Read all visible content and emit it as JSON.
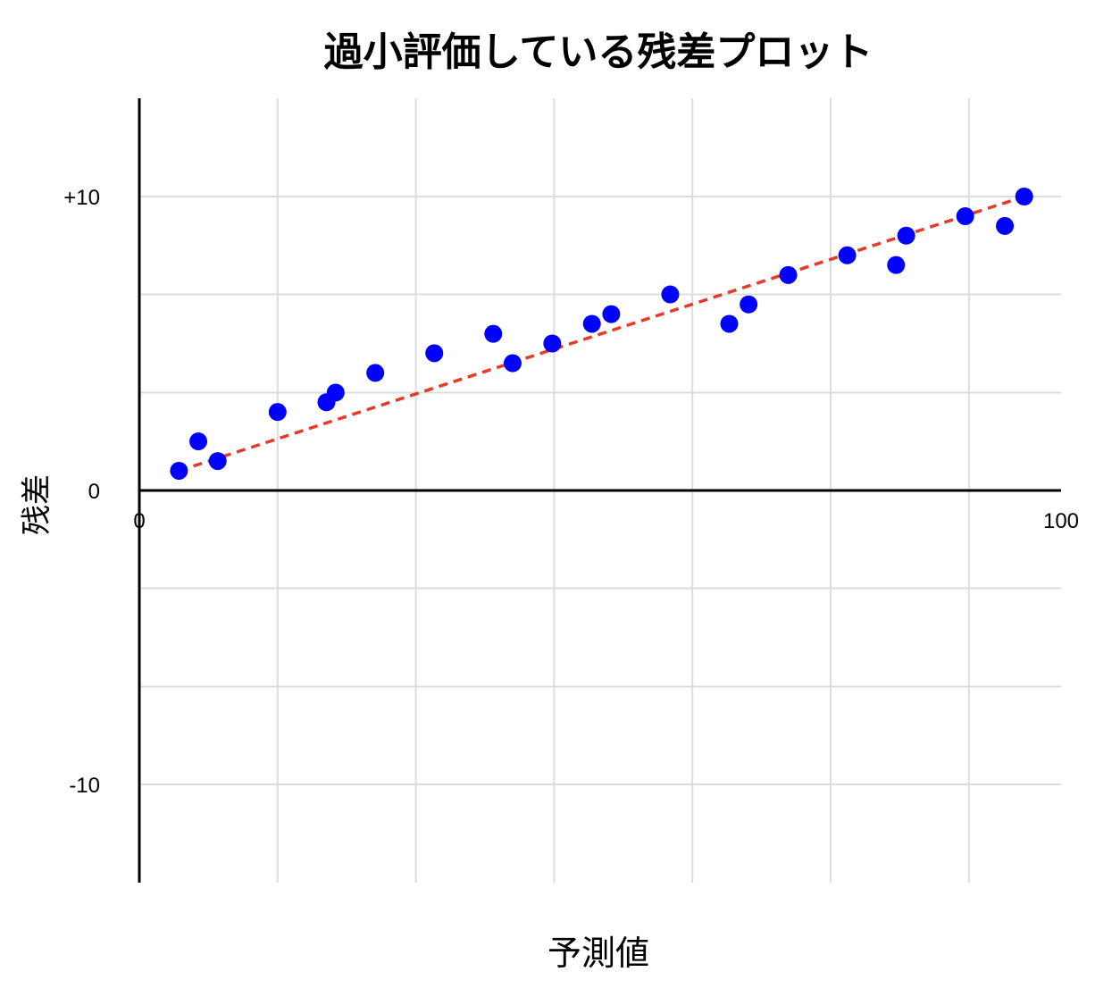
{
  "chart_data": {
    "type": "scatter",
    "title": "過小評価している残差プロット",
    "xlabel": "予測値",
    "ylabel": "残差",
    "xlim": [
      0,
      100
    ],
    "ylim": [
      -13.3,
      13.3
    ],
    "grid": true,
    "x_tick_labels": [
      {
        "value": 0,
        "label": "0"
      },
      {
        "value": 100,
        "label": "100"
      }
    ],
    "y_tick_labels": [
      {
        "value": 10,
        "label": "+10"
      },
      {
        "value": 0,
        "label": "0"
      },
      {
        "value": -10,
        "label": "-10"
      }
    ],
    "x_gridlines": [
      15,
      30,
      45,
      60,
      75,
      90
    ],
    "y_gridlines": [
      10,
      6.67,
      3.33,
      -3.33,
      -6.67,
      -10
    ],
    "colors": {
      "points": "#0000ff",
      "trend": "#e8392b",
      "grid": "#dddddd",
      "axis": "#000000"
    },
    "points": [
      {
        "x": 4.3,
        "y": 0.67
      },
      {
        "x": 6.4,
        "y": 1.67
      },
      {
        "x": 8.5,
        "y": 1.0
      },
      {
        "x": 15.0,
        "y": 2.67
      },
      {
        "x": 20.3,
        "y": 3.0
      },
      {
        "x": 21.3,
        "y": 3.33
      },
      {
        "x": 25.6,
        "y": 4.0
      },
      {
        "x": 32.0,
        "y": 4.67
      },
      {
        "x": 38.4,
        "y": 5.33
      },
      {
        "x": 40.5,
        "y": 4.33
      },
      {
        "x": 44.8,
        "y": 5.0
      },
      {
        "x": 49.1,
        "y": 5.67
      },
      {
        "x": 51.2,
        "y": 6.0
      },
      {
        "x": 57.6,
        "y": 6.67
      },
      {
        "x": 64.0,
        "y": 5.67
      },
      {
        "x": 66.1,
        "y": 6.33
      },
      {
        "x": 70.4,
        "y": 7.33
      },
      {
        "x": 76.8,
        "y": 8.0
      },
      {
        "x": 82.1,
        "y": 7.67
      },
      {
        "x": 83.2,
        "y": 8.67
      },
      {
        "x": 89.6,
        "y": 9.33
      },
      {
        "x": 93.9,
        "y": 9.0
      },
      {
        "x": 96.0,
        "y": 10.0
      }
    ],
    "trend_line": {
      "style": "dashed",
      "from": {
        "x": 4.3,
        "y": 0.67
      },
      "to": {
        "x": 96.0,
        "y": 10.0
      }
    }
  }
}
